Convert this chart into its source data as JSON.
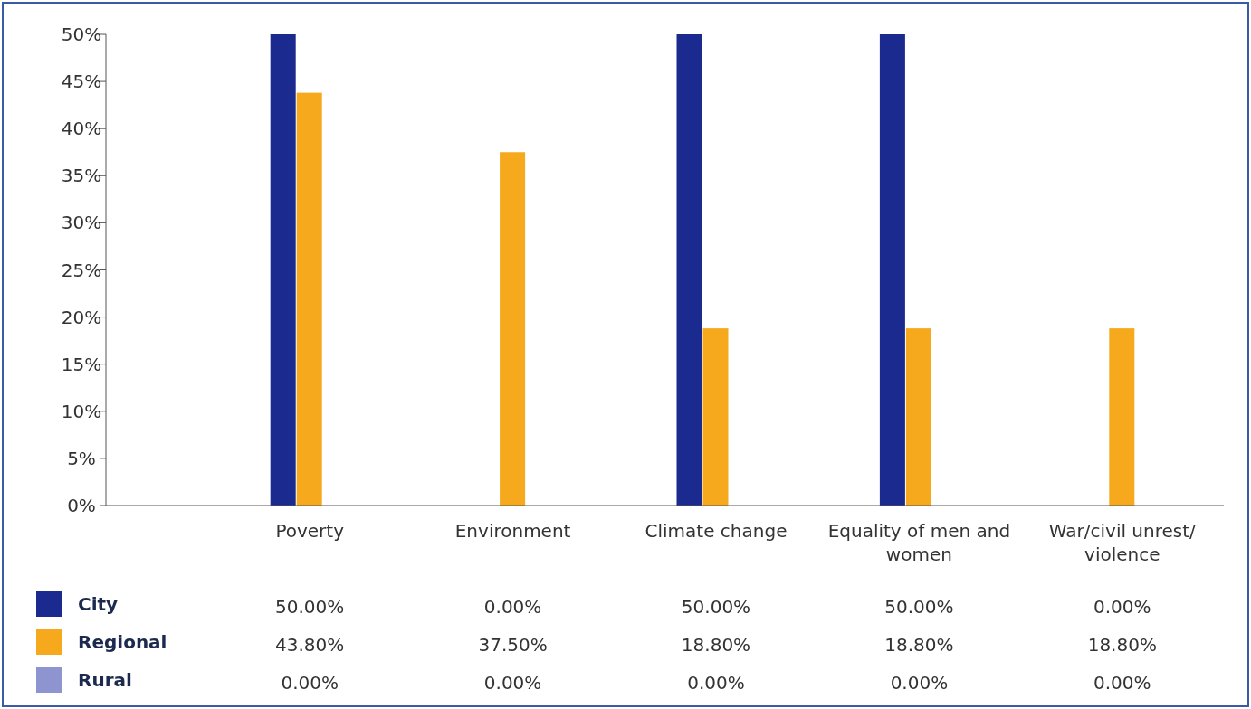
{
  "chart_data": {
    "type": "bar",
    "categories": [
      "Poverty",
      "Environment",
      "Climate change",
      "Equality of men and women",
      "War/civil unrest/ violence"
    ],
    "series": [
      {
        "name": "City",
        "color": "#1b2a8e",
        "values": [
          50,
          0,
          50,
          50,
          0
        ],
        "value_labels": [
          "50.00%",
          "0.00%",
          "50.00%",
          "50.00%",
          "0.00%"
        ]
      },
      {
        "name": "Regional",
        "color": "#f6a91c",
        "values": [
          43.8,
          37.5,
          18.8,
          18.8,
          18.8
        ],
        "value_labels": [
          "43.80%",
          "37.50%",
          "18.80%",
          "18.80%",
          "18.80%"
        ]
      },
      {
        "name": "Rural",
        "color": "#8e94cf",
        "values": [
          0,
          0,
          0,
          0,
          0
        ],
        "value_labels": [
          "0.00%",
          "0.00%",
          "0.00%",
          "0.00%",
          "0.00%"
        ]
      }
    ],
    "ylim": [
      0,
      50
    ],
    "yticks": [
      {
        "value": 0,
        "label": "0%"
      },
      {
        "value": 5,
        "label": "5%"
      },
      {
        "value": 10,
        "label": "10%"
      },
      {
        "value": 15,
        "label": "15%"
      },
      {
        "value": 20,
        "label": "20%"
      },
      {
        "value": 25,
        "label": "25%"
      },
      {
        "value": 30,
        "label": "30%"
      },
      {
        "value": 35,
        "label": "35%"
      },
      {
        "value": 40,
        "label": "40%"
      },
      {
        "value": 45,
        "label": "45%"
      },
      {
        "value": 50,
        "label": "50%"
      }
    ],
    "legend": "bottom"
  }
}
